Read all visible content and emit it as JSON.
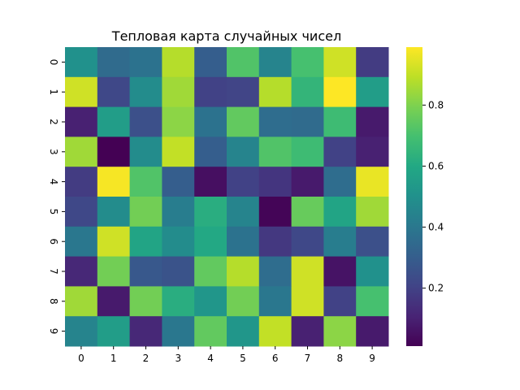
{
  "chart_data": {
    "type": "heatmap",
    "title": "Тепловая карта случайных чисел",
    "xlabel": "",
    "ylabel": "",
    "x_categories": [
      "0",
      "1",
      "2",
      "3",
      "4",
      "5",
      "6",
      "7",
      "8",
      "9"
    ],
    "y_categories": [
      "0",
      "1",
      "2",
      "3",
      "4",
      "5",
      "6",
      "7",
      "8",
      "9"
    ],
    "colormap": "viridis",
    "value_range": [
      0.01,
      0.99
    ],
    "colorbar_ticks": [
      0.2,
      0.4,
      0.6,
      0.8
    ],
    "colorbar_tick_labels": [
      "0.2",
      "0.4",
      "0.6",
      "0.8"
    ],
    "grid": false,
    "values": [
      [
        0.5,
        0.35,
        0.38,
        0.88,
        0.3,
        0.72,
        0.45,
        0.7,
        0.92,
        0.18
      ],
      [
        0.92,
        0.22,
        0.48,
        0.85,
        0.2,
        0.21,
        0.88,
        0.65,
        0.99,
        0.55
      ],
      [
        0.1,
        0.55,
        0.25,
        0.82,
        0.38,
        0.75,
        0.36,
        0.35,
        0.68,
        0.08
      ],
      [
        0.85,
        0.01,
        0.48,
        0.9,
        0.3,
        0.45,
        0.72,
        0.68,
        0.2,
        0.1
      ],
      [
        0.18,
        0.98,
        0.72,
        0.3,
        0.05,
        0.2,
        0.16,
        0.08,
        0.36,
        0.96
      ],
      [
        0.22,
        0.48,
        0.78,
        0.42,
        0.62,
        0.45,
        0.02,
        0.76,
        0.58,
        0.85
      ],
      [
        0.4,
        0.92,
        0.58,
        0.48,
        0.6,
        0.38,
        0.17,
        0.22,
        0.42,
        0.25
      ],
      [
        0.12,
        0.78,
        0.28,
        0.26,
        0.75,
        0.88,
        0.36,
        0.92,
        0.06,
        0.5
      ],
      [
        0.85,
        0.08,
        0.78,
        0.62,
        0.52,
        0.78,
        0.4,
        0.92,
        0.2,
        0.7
      ],
      [
        0.45,
        0.55,
        0.12,
        0.4,
        0.75,
        0.52,
        0.9,
        0.1,
        0.82,
        0.08
      ]
    ]
  }
}
